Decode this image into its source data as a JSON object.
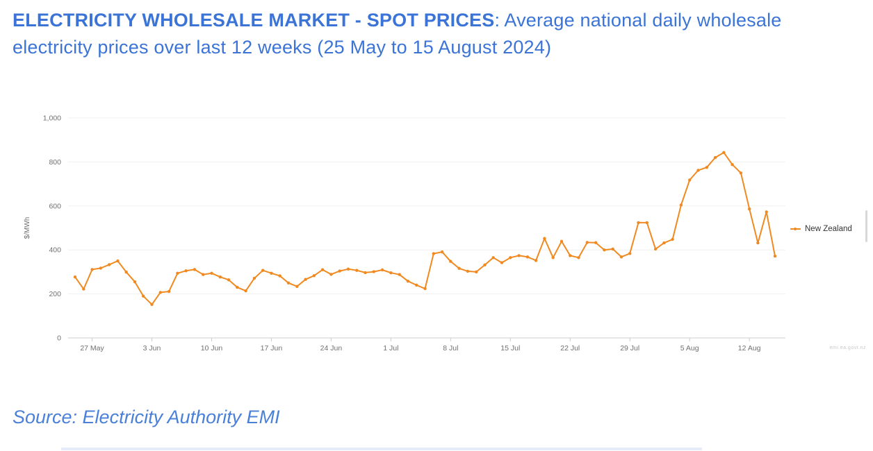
{
  "page": {
    "title_bold": "ELECTRICITY WHOLESALE MARKET - SPOT PRICES",
    "title_rest": ": Average national daily wholesale electricity prices over last 12 weeks (25 May to 15 August 2024)",
    "source_text": "Source: Electricity Authority EMI",
    "title_color": "#3b74d6"
  },
  "chart": {
    "ylabel": "$/MWh",
    "legend_label": "New Zealand",
    "watermark": "emi.ea.govt.nz",
    "line_color": "#f08a20",
    "grid_color": "#f0f0f0",
    "axis_color": "#cccccc",
    "tick_text_color": "#707070"
  },
  "chart_data": {
    "type": "line",
    "title": "",
    "xlabel": "",
    "ylabel": "$/MWh",
    "ylim": [
      0,
      1000
    ],
    "grid": "horizontal",
    "legend_position": "right",
    "start_date": "25 May 2024",
    "end_date": "15 Aug 2024",
    "y_tick_values": [
      1000,
      800,
      600,
      400,
      200,
      0
    ],
    "y_tick_labels": [
      "1,000",
      "800",
      "600",
      "400",
      "200",
      "0"
    ],
    "x_tick_labels": [
      "27 May",
      "3 Jun",
      "10 Jun",
      "17 Jun",
      "24 Jun",
      "1 Jul",
      "8 Jul",
      "15 Jul",
      "22 Jul",
      "29 Jul",
      "5 Aug",
      "12 Aug"
    ],
    "x_tick_indices": [
      2,
      9,
      16,
      23,
      30,
      37,
      44,
      51,
      58,
      65,
      72,
      79
    ],
    "series": [
      {
        "name": "New Zealand",
        "values": [
          277,
          222,
          311,
          317,
          333,
          350,
          299,
          255,
          190,
          152,
          207,
          211,
          294,
          305,
          311,
          288,
          294,
          277,
          264,
          230,
          214,
          271,
          307,
          294,
          282,
          250,
          234,
          266,
          283,
          310,
          289,
          304,
          313,
          307,
          297,
          301,
          309,
          296,
          288,
          258,
          240,
          224,
          383,
          391,
          348,
          316,
          303,
          300,
          332,
          365,
          342,
          365,
          374,
          368,
          352,
          452,
          365,
          439,
          374,
          365,
          434,
          433,
          400,
          404,
          368,
          384,
          524,
          524,
          404,
          432,
          448,
          604,
          718,
          762,
          775,
          820,
          843,
          788,
          750,
          586,
          432,
          573,
          372
        ]
      }
    ]
  }
}
